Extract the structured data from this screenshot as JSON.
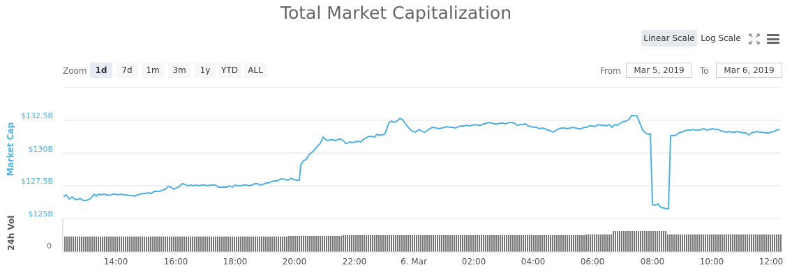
{
  "header": {
    "title": "Total Market Capitalization"
  },
  "toolbar": {
    "linear_scale_label": "Linear Scale",
    "log_scale_label": "Log Scale",
    "fullscreen_icon": "fullscreen-icon",
    "menu_icon": "hamburger-menu-icon"
  },
  "zoom": {
    "label": "Zoom",
    "buttons": [
      "1d",
      "7d",
      "1m",
      "3m",
      "1y",
      "YTD",
      "ALL"
    ],
    "active": "1d"
  },
  "range": {
    "from_label": "From",
    "from_value": "Mar 5, 2019",
    "to_label": "To",
    "to_value": "Mar 6, 2019"
  },
  "colors": {
    "line": "#4fb0e4",
    "volume": "#777777",
    "grid": "#e6e6e6",
    "active_button": "#e6ebf5"
  },
  "chart_data": {
    "type": "line",
    "title": "Total Market Capitalization",
    "ylabel": "Market Cap",
    "y2label": "24h Vol",
    "yticks": [
      "$125B",
      "$127.5B",
      "$130B",
      "$132.5B"
    ],
    "y2ticks": [
      "0"
    ],
    "xticks": [
      "14:00",
      "16:00",
      "18:00",
      "20:00",
      "22:00",
      "6. Mar",
      "02:00",
      "04:00",
      "06:00",
      "08:00",
      "10:00",
      "12:00"
    ],
    "ylim": [
      125,
      133.5
    ],
    "grid": true,
    "x": [
      "12:30",
      "13:00",
      "13:30",
      "14:00",
      "14:30",
      "15:00",
      "15:30",
      "16:00",
      "16:30",
      "17:00",
      "17:30",
      "18:00",
      "18:30",
      "19:00",
      "19:30",
      "20:00",
      "20:15",
      "20:30",
      "21:00",
      "21:30",
      "22:00",
      "22:30",
      "23:00",
      "23:30",
      "00:00",
      "00:30",
      "01:00",
      "01:30",
      "02:00",
      "02:30",
      "03:00",
      "03:30",
      "04:00",
      "04:30",
      "05:00",
      "05:30",
      "06:00",
      "06:30",
      "07:00",
      "07:20",
      "07:40",
      "08:00",
      "08:05",
      "08:20",
      "08:30",
      "08:35",
      "09:00",
      "09:30",
      "10:00",
      "10:30",
      "11:00",
      "11:30",
      "12:00",
      "12:20"
    ],
    "series": [
      {
        "name": "Market Cap ($B)",
        "values": [
          126.2,
          126.2,
          126.3,
          126.3,
          126.4,
          126.4,
          126.7,
          126.9,
          126.9,
          126.9,
          126.8,
          126.9,
          127.1,
          127.3,
          127.4,
          127.3,
          128.6,
          129.2,
          130.0,
          130.6,
          130.8,
          131.2,
          132.1,
          132.7,
          131.8,
          132.3,
          132.3,
          132.2,
          132.4,
          132.3,
          132.5,
          132.2,
          131.6,
          131.9,
          132.0,
          131.9,
          132.1,
          132.3,
          132.0,
          133.1,
          133.0,
          131.8,
          125.3,
          125.4,
          125.1,
          131.6,
          131.8,
          131.9,
          131.8,
          131.7,
          131.6,
          131.6,
          131.5,
          131.9
        ]
      },
      {
        "name": "24h Vol (relative)",
        "values": [
          1.0,
          1.0,
          1.0,
          1.0,
          1.0,
          1.0,
          1.0,
          1.0,
          1.0,
          1.0,
          1.0,
          1.0,
          1.0,
          1.0,
          1.0,
          1.0,
          1.02,
          1.03,
          1.04,
          1.05,
          1.06,
          1.07,
          1.08,
          1.09,
          1.1,
          1.1,
          1.1,
          1.1,
          1.1,
          1.1,
          1.1,
          1.1,
          1.1,
          1.1,
          1.1,
          1.1,
          1.1,
          1.1,
          1.1,
          1.12,
          1.12,
          1.35,
          1.35,
          1.35,
          1.35,
          1.12,
          1.12,
          1.12,
          1.12,
          1.12,
          1.12,
          1.12,
          1.12,
          1.12
        ]
      }
    ]
  }
}
